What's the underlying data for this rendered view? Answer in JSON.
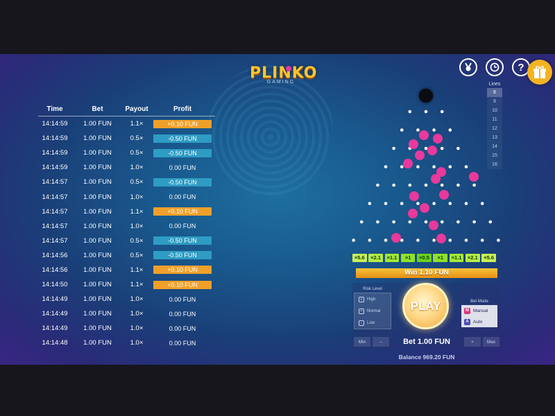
{
  "logo": {
    "title": "PLINKO",
    "subtitle": "GAMING"
  },
  "history": {
    "headers": {
      "time": "Time",
      "bet": "Bet",
      "payout": "Payout",
      "profit": "Profit"
    },
    "rows": [
      {
        "time": "14:14:59",
        "bet": "1.00 FUN",
        "payout": "1.1×",
        "profit": "+0.10 FUN",
        "kind": "win"
      },
      {
        "time": "14:14:59",
        "bet": "1.00 FUN",
        "payout": "0.5×",
        "profit": "-0.50 FUN",
        "kind": "loss"
      },
      {
        "time": "14:14:59",
        "bet": "1.00 FUN",
        "payout": "0.5×",
        "profit": "-0.50 FUN",
        "kind": "loss"
      },
      {
        "time": "14:14:59",
        "bet": "1.00 FUN",
        "payout": "1.0×",
        "profit": "0.00 FUN",
        "kind": "even"
      },
      {
        "time": "14:14:57",
        "bet": "1.00 FUN",
        "payout": "0.5×",
        "profit": "-0.50 FUN",
        "kind": "loss"
      },
      {
        "time": "14:14:57",
        "bet": "1.00 FUN",
        "payout": "1.0×",
        "profit": "0.00 FUN",
        "kind": "even"
      },
      {
        "time": "14:14:57",
        "bet": "1.00 FUN",
        "payout": "1.1×",
        "profit": "+0.10 FUN",
        "kind": "win"
      },
      {
        "time": "14:14:57",
        "bet": "1.00 FUN",
        "payout": "1.0×",
        "profit": "0.00 FUN",
        "kind": "even"
      },
      {
        "time": "14:14:57",
        "bet": "1.00 FUN",
        "payout": "0.5×",
        "profit": "-0.50 FUN",
        "kind": "loss"
      },
      {
        "time": "14:14:56",
        "bet": "1.00 FUN",
        "payout": "0.5×",
        "profit": "-0.50 FUN",
        "kind": "loss"
      },
      {
        "time": "14:14:56",
        "bet": "1.00 FUN",
        "payout": "1.1×",
        "profit": "+0.10 FUN",
        "kind": "win"
      },
      {
        "time": "14:14:50",
        "bet": "1.00 FUN",
        "payout": "1.1×",
        "profit": "+0.10 FUN",
        "kind": "win"
      },
      {
        "time": "14:14:49",
        "bet": "1.00 FUN",
        "payout": "1.0×",
        "profit": "0.00 FUN",
        "kind": "even"
      },
      {
        "time": "14:14:49",
        "bet": "1.00 FUN",
        "payout": "1.0×",
        "profit": "0.00 FUN",
        "kind": "even"
      },
      {
        "time": "14:14:49",
        "bet": "1.00 FUN",
        "payout": "1.0×",
        "profit": "0.00 FUN",
        "kind": "even"
      },
      {
        "time": "14:14:48",
        "bet": "1.00 FUN",
        "payout": "1.0×",
        "profit": "0.00 FUN",
        "kind": "even"
      }
    ]
  },
  "top_icons": {
    "achievements": "medal-icon",
    "history": "history-icon",
    "help": "?",
    "gift": "gift-icon"
  },
  "lines": {
    "title": "Lines",
    "options": [
      "8",
      "9",
      "10",
      "11",
      "12",
      "13",
      "14",
      "15",
      "16"
    ],
    "selected": "8"
  },
  "board": {
    "rows": 8,
    "multipliers": [
      "×5.6",
      "×2.1",
      "×1.1",
      "×1",
      "×0.5",
      "×1",
      "×1.1",
      "×2.1",
      "×5.6"
    ],
    "multiplier_colors": [
      "#c8f05a",
      "#b5ec45",
      "#a3e838",
      "#8fe22a",
      "#6ad21c",
      "#8fe22a",
      "#a3e838",
      "#b5ec45",
      "#c8f05a"
    ],
    "ball_color": "#e8399d"
  },
  "win_bar": "Win 1.10 FUN",
  "risk": {
    "title": "Risk Level",
    "options": [
      "High",
      "Normal",
      "Low"
    ]
  },
  "play_label": "PLAY",
  "bet_mode": {
    "title": "Bet Mode",
    "options": [
      {
        "key": "M",
        "label": "Manual"
      },
      {
        "key": "A",
        "label": "Auto"
      }
    ],
    "selected": "Manual"
  },
  "bet": {
    "min_label": "Min",
    "minus_label": "–",
    "value_label": "Bet 1.00 FUN",
    "plus_label": "+",
    "max_label": "Max"
  },
  "balance": "Balance 969.20 FUN",
  "colors": {
    "accent": "#f5b323",
    "win": "#f0a02a",
    "loss": "#2e9cc4"
  }
}
